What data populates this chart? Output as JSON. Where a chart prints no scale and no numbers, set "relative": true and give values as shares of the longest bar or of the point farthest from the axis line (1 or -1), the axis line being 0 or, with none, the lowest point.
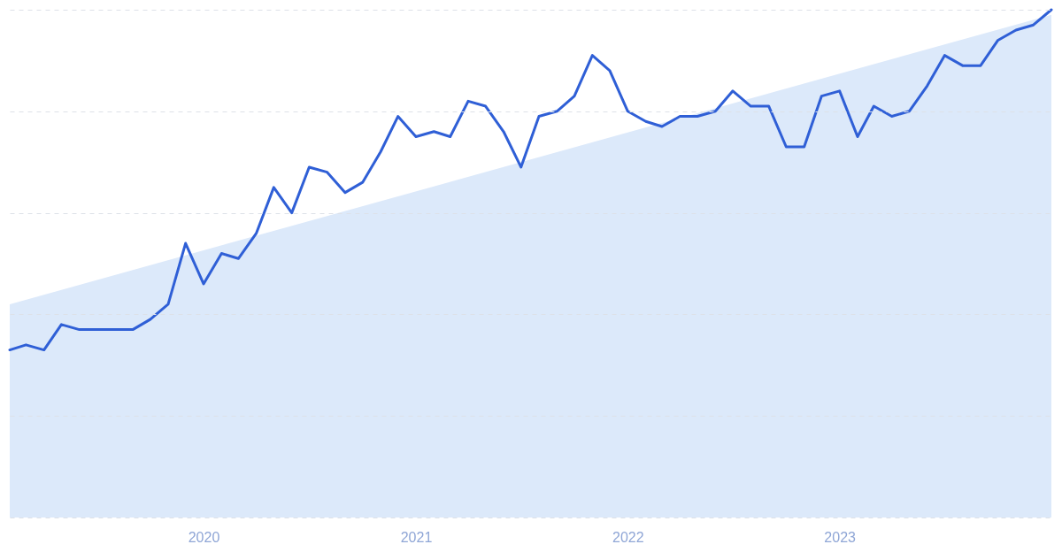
{
  "chart_data": {
    "type": "line",
    "relative": true,
    "grid": "y",
    "marker": "none",
    "line_style": "solid",
    "x": [
      "2019-02",
      "2019-03",
      "2019-04",
      "2019-05",
      "2019-06",
      "2019-07",
      "2019-08",
      "2019-09",
      "2019-10",
      "2019-11",
      "2019-12",
      "2020-01",
      "2020-02",
      "2020-03",
      "2020-04",
      "2020-05",
      "2020-06",
      "2020-07",
      "2020-08",
      "2020-09",
      "2020-10",
      "2020-11",
      "2020-12",
      "2021-01",
      "2021-02",
      "2021-03",
      "2021-04",
      "2021-05",
      "2021-06",
      "2021-07",
      "2021-08",
      "2021-09",
      "2021-10",
      "2021-11",
      "2021-12",
      "2022-01",
      "2022-02",
      "2022-03",
      "2022-04",
      "2022-05",
      "2022-06",
      "2022-07",
      "2022-08",
      "2022-09",
      "2022-10",
      "2022-11",
      "2022-12",
      "2023-01",
      "2023-02",
      "2023-03",
      "2023-04",
      "2023-05",
      "2023-06",
      "2023-07",
      "2023-08",
      "2023-09",
      "2023-10",
      "2023-11",
      "2023-12",
      "2024-01"
    ],
    "xlim": [
      "2019-02",
      "2024-01"
    ],
    "xticks": [
      {
        "value": "2020-01",
        "label": "2020"
      },
      {
        "value": "2021-01",
        "label": "2021"
      },
      {
        "value": "2022-01",
        "label": "2022"
      },
      {
        "value": "2023-01",
        "label": "2023"
      }
    ],
    "series": [
      {
        "type": "area",
        "color": "#dce9fa",
        "x": [
          "2019-02",
          "2024-01"
        ],
        "values": [
          0.42,
          0.99
        ]
      },
      {
        "color": "#2f5fd6",
        "values": [
          0.33,
          0.34,
          0.33,
          0.38,
          0.37,
          0.37,
          0.37,
          0.37,
          0.39,
          0.42,
          0.54,
          0.46,
          0.52,
          0.51,
          0.56,
          0.65,
          0.6,
          0.69,
          0.68,
          0.64,
          0.66,
          0.72,
          0.79,
          0.75,
          0.76,
          0.75,
          0.82,
          0.81,
          0.76,
          0.69,
          0.79,
          0.8,
          0.83,
          0.91,
          0.88,
          0.8,
          0.78,
          0.77,
          0.79,
          0.79,
          0.8,
          0.84,
          0.81,
          0.81,
          0.73,
          0.73,
          0.83,
          0.84,
          0.75,
          0.81,
          0.79,
          0.8,
          0.85,
          0.91,
          0.89,
          0.89,
          0.94,
          0.96,
          0.97,
          1.0
        ]
      }
    ]
  }
}
